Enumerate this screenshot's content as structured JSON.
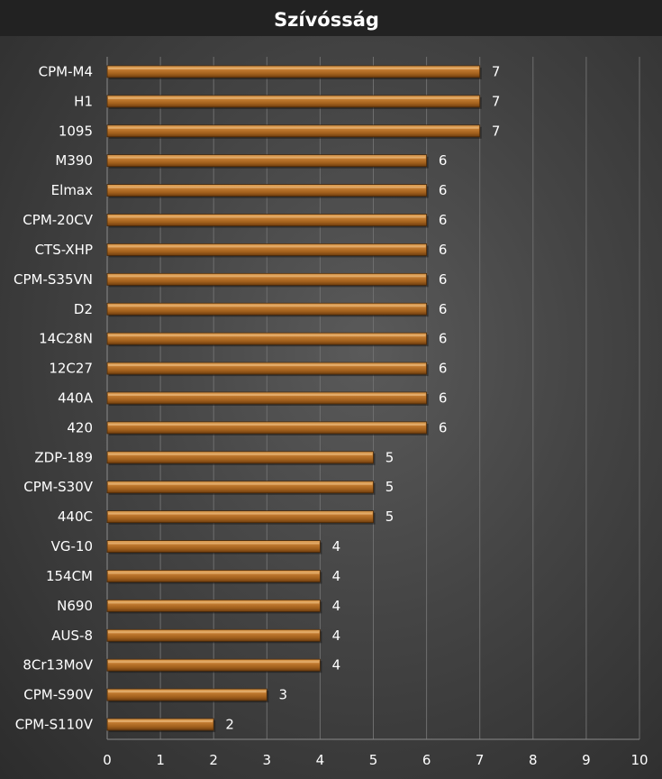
{
  "chart_data": {
    "type": "bar",
    "orientation": "horizontal",
    "title": "Szívósság",
    "xlabel": "",
    "ylabel": "",
    "xlim": [
      0,
      10
    ],
    "x_ticks": [
      0,
      1,
      2,
      3,
      4,
      5,
      6,
      7,
      8,
      9,
      10
    ],
    "grid": true,
    "legend": "none",
    "bar_color": "#b8722a",
    "categories": [
      "CPM-M4",
      "H1",
      "1095",
      "M390",
      "Elmax",
      "CPM-20CV",
      "CTS-XHP",
      "CPM-S35VN",
      "D2",
      "14C28N",
      "12C27",
      "440A",
      "420",
      "ZDP-189",
      "CPM-S30V",
      "440C",
      "VG-10",
      "154CM",
      "N690",
      "AUS-8",
      "8Cr13MoV",
      "CPM-S90V",
      "CPM-S110V"
    ],
    "values": [
      7,
      7,
      7,
      6,
      6,
      6,
      6,
      6,
      6,
      6,
      6,
      6,
      6,
      5,
      5,
      5,
      4,
      4,
      4,
      4,
      4,
      3,
      2
    ]
  }
}
